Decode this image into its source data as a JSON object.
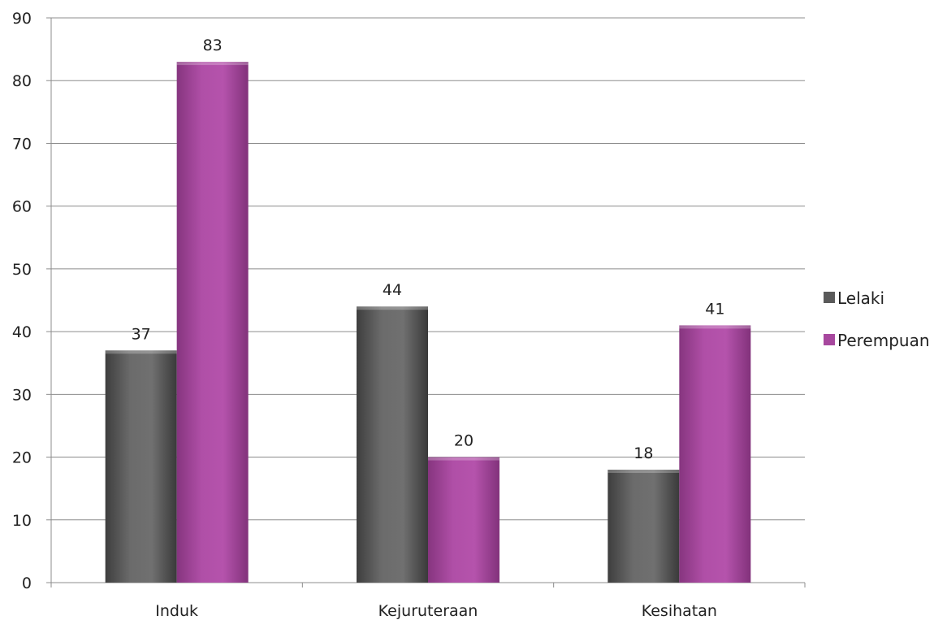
{
  "chart_data": {
    "type": "bar",
    "categories": [
      "Induk",
      "Kejuruteraan",
      "Kesihatan"
    ],
    "series": [
      {
        "name": "Lelaki",
        "values": [
          37,
          44,
          18
        ],
        "color": "#5a5a5a"
      },
      {
        "name": "Perempuan",
        "values": [
          83,
          20,
          41
        ],
        "color": "#a7489e"
      }
    ],
    "ylim": [
      0,
      90
    ],
    "yticks": [
      0,
      10,
      20,
      30,
      40,
      50,
      60,
      70,
      80,
      90
    ],
    "grid": true,
    "legend_position": "right",
    "data_labels": true
  }
}
